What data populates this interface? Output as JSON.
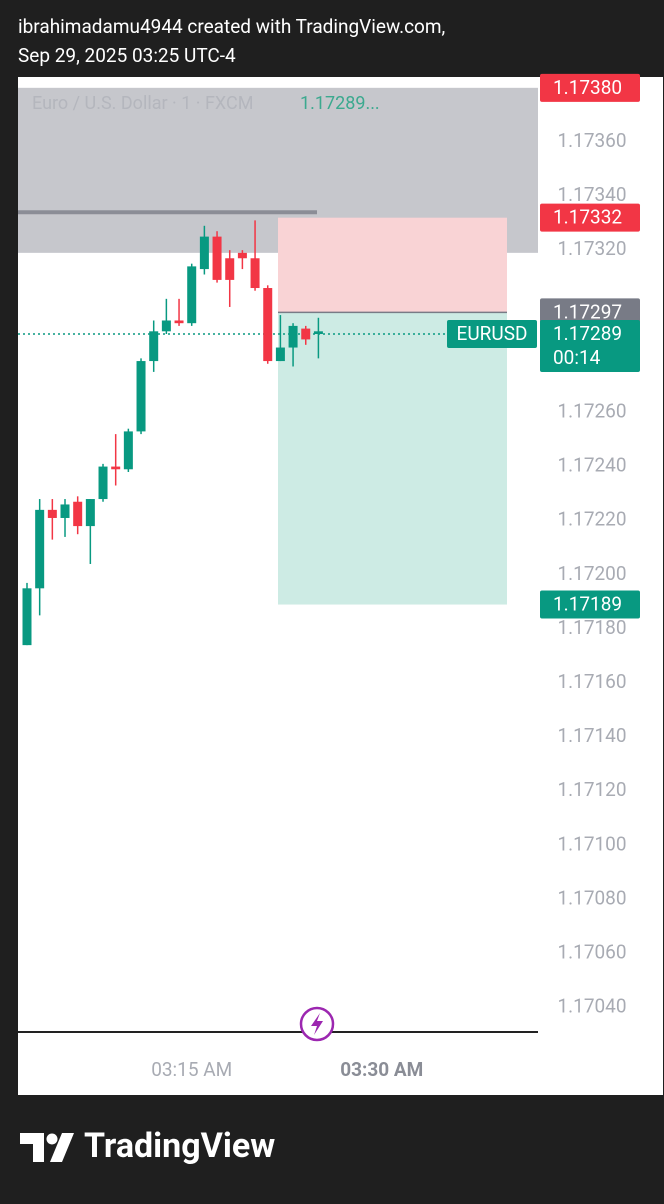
{
  "header": {
    "line1": "ibrahimadamu4944 created with TradingView.com,",
    "line2": "Sep 29, 2025 03:25 UTC-4"
  },
  "footer": {
    "brand": "TradingView"
  },
  "chart_data": {
    "type": "candlestick",
    "legend": {
      "name": "Euro / U.S. Dollar · 1 · FXCM",
      "price": "1.17289..."
    },
    "categories": [
      null,
      null,
      null,
      null,
      null,
      null,
      null,
      null,
      null,
      null,
      null,
      null,
      null,
      "03:15 AM",
      null,
      null,
      null,
      null,
      null,
      null,
      null,
      null,
      null,
      null,
      null,
      null,
      null,
      null,
      "03:30 AM"
    ],
    "open": [
      1.17174,
      1.17195,
      1.17224,
      1.17221,
      1.17227,
      1.17218,
      1.17228,
      1.1724,
      1.17239,
      1.17253,
      1.17279,
      1.1729,
      1.17294,
      1.17293,
      1.17313,
      1.17325,
      1.17317,
      1.17319,
      1.17317,
      1.17306,
      1.17279,
      1.17284,
      1.17291,
      1.17289,
      null,
      null,
      null,
      null,
      null
    ],
    "high": [
      1.17197,
      1.17228,
      1.17228,
      1.17228,
      1.17229,
      1.17228,
      1.17241,
      1.17252,
      1.17254,
      1.1728,
      1.17294,
      1.17302,
      1.17302,
      1.17315,
      1.17329,
      1.17327,
      1.1732,
      1.1732,
      1.17331,
      1.17307,
      1.17296,
      1.17293,
      1.17292,
      1.17295,
      null,
      null,
      null,
      null,
      null
    ],
    "low": [
      1.17174,
      1.17185,
      1.17213,
      1.17214,
      1.17215,
      1.17204,
      1.17227,
      1.17233,
      1.17238,
      1.17252,
      1.17275,
      1.17289,
      1.17292,
      1.17292,
      1.17311,
      1.17308,
      1.17299,
      1.17313,
      1.17305,
      1.17278,
      1.17279,
      1.17277,
      1.17285,
      1.1728,
      null,
      null,
      null,
      null,
      null
    ],
    "close": [
      1.17195,
      1.17224,
      1.17221,
      1.17226,
      1.17218,
      1.17228,
      1.1724,
      1.17239,
      1.17253,
      1.17279,
      1.1729,
      1.17294,
      1.17293,
      1.17314,
      1.17325,
      1.17309,
      1.17309,
      1.17317,
      1.17306,
      1.17279,
      1.17284,
      1.17292,
      1.17287,
      1.1729,
      null,
      null,
      null,
      null,
      null
    ],
    "up_color": "#089981",
    "down_color": "#f23645",
    "ylim": [
      1.17031,
      1.17384
    ],
    "yticks": [
      {
        "value": 1.1704,
        "label": "1.17040"
      },
      {
        "value": 1.1706,
        "label": "1.17060"
      },
      {
        "value": 1.1708,
        "label": "1.17080"
      },
      {
        "value": 1.171,
        "label": "1.17100"
      },
      {
        "value": 1.1712,
        "label": "1.17120"
      },
      {
        "value": 1.1714,
        "label": "1.17140"
      },
      {
        "value": 1.1716,
        "label": "1.17160"
      },
      {
        "value": 1.1718,
        "label": "1.17180"
      },
      {
        "value": 1.172,
        "label": "1.17200"
      },
      {
        "value": 1.1722,
        "label": "1.17220"
      },
      {
        "value": 1.1724,
        "label": "1.17240"
      },
      {
        "value": 1.1726,
        "label": "1.17260"
      },
      {
        "value": 1.1732,
        "label": "1.17320"
      },
      {
        "value": 1.1734,
        "label": "1.17340"
      },
      {
        "value": 1.1736,
        "label": "1.17360"
      }
    ],
    "grid": false,
    "rectangle": {
      "top": {
        "value": 1.1738,
        "label": "1.17380"
      },
      "bottom": 1.17319,
      "color": "#c6c7cc",
      "tag_color": "#f23645"
    },
    "horizontal_line": {
      "value": 1.17334,
      "color": "#8b8d96"
    },
    "position": {
      "stop": {
        "value": 1.17332,
        "label": "1.17332"
      },
      "entry": {
        "value": 1.17297,
        "label": "1.17297"
      },
      "target": {
        "value": 1.17189,
        "label": "1.17189"
      },
      "stop_color": "#f9d3d5",
      "target_color": "#cdebe4",
      "stop_tag_color": "#f23645",
      "entry_tag_color": "#787b86",
      "target_tag_color": "#089981"
    },
    "current_price": {
      "value": 1.17289,
      "label": "1.17289",
      "symbol": "EURUSD",
      "countdown": "00:14",
      "color": "#089981"
    }
  }
}
